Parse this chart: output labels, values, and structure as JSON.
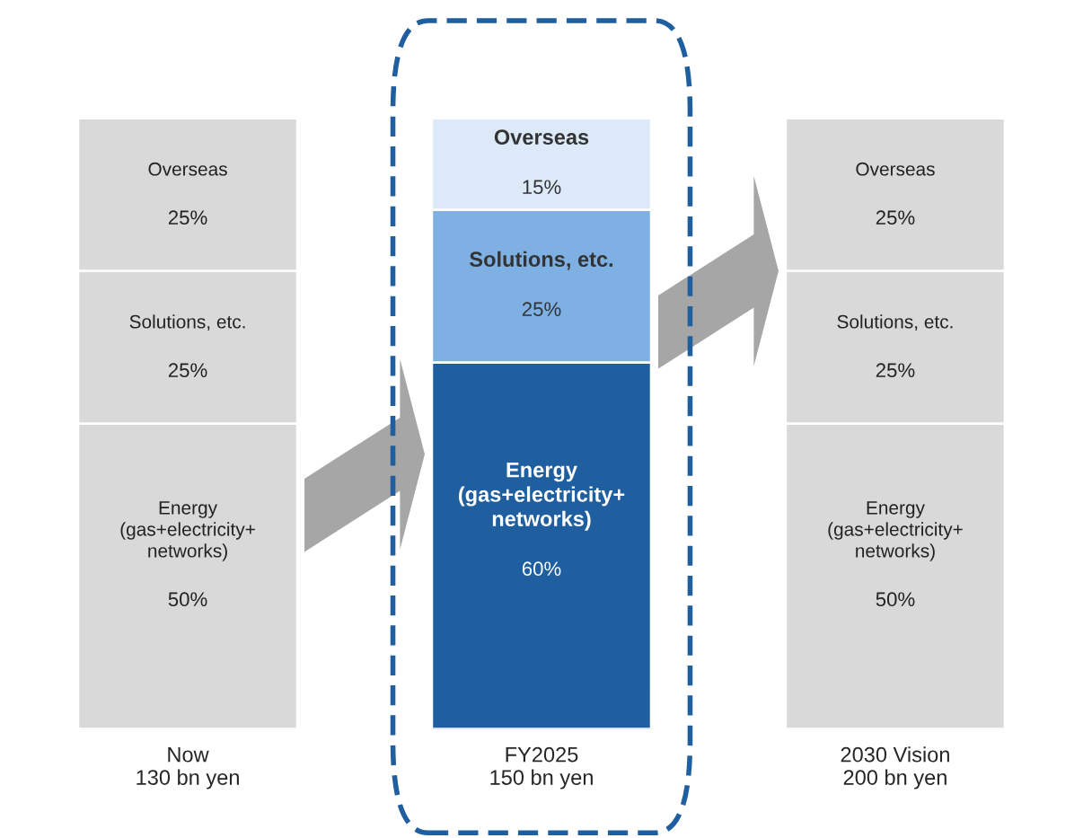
{
  "chart_data": {
    "type": "bar",
    "stacked": true,
    "categories": [
      "Now\n130 bn yen",
      "FY2025\n150 bn yen",
      "2030 Vision\n200 bn yen"
    ],
    "series": [
      {
        "name": "Energy\n(gas+electricity+\nnetworks)",
        "colors": [
          "#d9d9d9",
          "#1f5f9f",
          "#d9d9d9"
        ],
        "values": [
          50,
          60,
          50
        ],
        "value_labels": [
          "50%",
          "60%",
          "50%"
        ]
      },
      {
        "name": "Solutions, etc.",
        "colors": [
          "#d9d9d9",
          "#7eb0e3",
          "#d9d9d9"
        ],
        "values": [
          25,
          25,
          25
        ],
        "value_labels": [
          "25%",
          "25%",
          "25%"
        ]
      },
      {
        "name": "Overseas",
        "colors": [
          "#d9d9d9",
          "#dce9f8",
          "#d9d9d9"
        ],
        "values": [
          25,
          15,
          25
        ],
        "value_labels": [
          "25%",
          "15%",
          "25%"
        ]
      }
    ],
    "legend": false,
    "grid": false,
    "tick_labels": "x"
  }
}
